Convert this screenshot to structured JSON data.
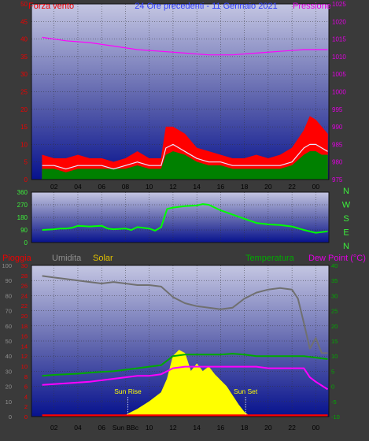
{
  "chart_data": [
    {
      "type": "line",
      "title": "24 Ore precedenti - 11 Gennaio 2021",
      "left_label": "Forza vento",
      "right_label": "Pressione",
      "x_ticks": [
        "02",
        "04",
        "06",
        "08",
        "10",
        "12",
        "14",
        "16",
        "18",
        "20",
        "22",
        "00"
      ],
      "y_left_ticks": [
        "0",
        "5",
        "10",
        "15",
        "20",
        "25",
        "30",
        "35",
        "40",
        "45",
        "50"
      ],
      "y_right_ticks": [
        "975",
        "980",
        "985",
        "990",
        "995",
        "1000",
        "1005",
        "1010",
        "1015",
        "1020",
        "1025"
      ],
      "ylim_left": [
        0,
        50
      ],
      "ylim_right": [
        975,
        1025
      ],
      "series": [
        {
          "key": "gust",
          "color": "#ff0000",
          "x": [
            0,
            1,
            2,
            3,
            4,
            5,
            6,
            7,
            8,
            9,
            10,
            10.4,
            11,
            12,
            13,
            14,
            15,
            16,
            17,
            18,
            19,
            20,
            21,
            22,
            22.5,
            23,
            23.5,
            24
          ],
          "values": [
            7,
            6,
            6,
            7,
            6,
            6,
            5,
            6,
            8,
            6,
            6,
            15,
            15,
            13,
            9,
            8,
            7,
            6,
            6,
            7,
            6,
            7,
            9,
            14,
            18,
            17,
            15,
            13
          ]
        },
        {
          "key": "avg",
          "color": "#008000",
          "x": [
            0,
            1,
            2,
            3,
            4,
            5,
            6,
            7,
            8,
            9,
            10,
            10.4,
            11,
            12,
            13,
            14,
            15,
            16,
            17,
            18,
            19,
            20,
            21,
            22,
            22.5,
            23,
            23.5,
            24
          ],
          "values": [
            3,
            3,
            2,
            3,
            3,
            3,
            3,
            3,
            4,
            3,
            3,
            7,
            8,
            7,
            5,
            4,
            4,
            3,
            3,
            3,
            3,
            3,
            4,
            7,
            8,
            8,
            7,
            7
          ]
        },
        {
          "key": "wind",
          "color": "#e8e8ff",
          "x": [
            0,
            1,
            2,
            3,
            4,
            5,
            6,
            7,
            8,
            9,
            10,
            10.4,
            11,
            12,
            13,
            14,
            15,
            16,
            17,
            18,
            19,
            20,
            21,
            22,
            22.5,
            23,
            23.5,
            24
          ],
          "values": [
            4,
            4,
            3,
            4,
            4,
            4,
            3,
            4,
            5,
            4,
            4,
            9,
            10,
            8,
            6,
            5,
            5,
            4,
            4,
            4,
            4,
            4,
            5,
            9,
            10,
            10,
            9,
            8
          ]
        },
        {
          "key": "pressure",
          "axis": "right",
          "color": "#ff00ff",
          "x": [
            0,
            2,
            4,
            6,
            8,
            10,
            12,
            14,
            16,
            18,
            20,
            22,
            23,
            24
          ],
          "values": [
            1015.5,
            1014.5,
            1014,
            1013,
            1012,
            1011.5,
            1011,
            1010.5,
            1010.5,
            1011,
            1011.5,
            1012,
            1012,
            1012
          ]
        }
      ]
    },
    {
      "type": "line",
      "y_left_ticks": [
        "0",
        "90",
        "180",
        "270",
        "360"
      ],
      "ylim": [
        0,
        360
      ],
      "right_labels": [
        "N",
        "W",
        "S",
        "E",
        "N"
      ],
      "series": [
        {
          "key": "direction",
          "color": "#00ff00",
          "x": [
            0,
            1,
            1.5,
            2,
            2.5,
            3,
            4,
            5,
            5.5,
            6,
            7,
            7.5,
            8,
            9,
            9.5,
            10,
            10.5,
            11,
            12,
            13,
            13.5,
            14,
            15,
            16,
            17,
            18,
            19,
            20,
            21,
            22,
            23,
            24
          ],
          "values": [
            90,
            95,
            100,
            100,
            105,
            120,
            115,
            120,
            100,
            95,
            100,
            90,
            110,
            100,
            85,
            110,
            240,
            250,
            260,
            265,
            275,
            270,
            230,
            200,
            170,
            140,
            130,
            125,
            115,
            90,
            70,
            80
          ]
        }
      ]
    },
    {
      "type": "line",
      "labels": {
        "rain": "Pioggia",
        "humidity": "Umidita",
        "solar": "Solar",
        "temperature": "Temperatura",
        "dew": "Dew Point (°C)"
      },
      "x_ticks": [
        "02",
        "04",
        "06",
        "Sun BBc",
        "10",
        "12",
        "14",
        "16",
        "18",
        "20",
        "22",
        "00"
      ],
      "y_humidity_ticks": [
        "0",
        "10",
        "20",
        "30",
        "40",
        "50",
        "60",
        "70",
        "80",
        "90",
        "100"
      ],
      "y_rain_ticks": [
        "0",
        "2",
        "4",
        "6",
        "8",
        "10",
        "12",
        "14",
        "16",
        "18",
        "20",
        "22",
        "24",
        "26",
        "28",
        "30"
      ],
      "y_temp_ticks": [
        "-10",
        "-5",
        "0",
        "5",
        "10",
        "15",
        "20",
        "25",
        "30",
        "35",
        "40"
      ],
      "ylim_humidity": [
        0,
        100
      ],
      "ylim_temp": [
        -10,
        40
      ],
      "annotations": [
        "Sun Rise",
        "Sun Set"
      ],
      "series": [
        {
          "key": "humidity",
          "color": "#707070",
          "x": [
            0,
            1,
            2,
            3,
            4,
            5,
            6,
            7,
            8,
            9,
            10,
            11,
            12,
            13,
            14,
            15,
            16,
            17,
            18,
            19,
            20,
            21,
            21.5,
            22,
            22.5,
            23,
            23.5,
            24
          ],
          "values": [
            93,
            92,
            91,
            90,
            89,
            88,
            89,
            88,
            87,
            87,
            86,
            79,
            75,
            73,
            72,
            71,
            72,
            78,
            82,
            84,
            85,
            84,
            78,
            62,
            45,
            52,
            42,
            42
          ]
        },
        {
          "key": "temperature",
          "color": "#00aa00",
          "x": [
            0,
            1,
            2,
            3,
            4,
            5,
            6,
            7,
            8,
            9,
            10,
            11,
            12,
            13,
            14,
            15,
            16,
            17,
            18,
            19,
            20,
            21,
            22,
            23,
            24
          ],
          "values": [
            3.5,
            3.8,
            4,
            4.2,
            4.5,
            4.8,
            5,
            5.5,
            6,
            6.5,
            7,
            10,
            10.5,
            10.5,
            10.5,
            10.5,
            10.8,
            10.5,
            10,
            10,
            10,
            10,
            10,
            9.5,
            9
          ]
        },
        {
          "key": "dew",
          "color": "#ff00ff",
          "x": [
            0,
            2,
            4,
            5,
            6,
            7,
            8,
            9,
            10,
            11,
            12,
            13,
            14,
            15,
            16,
            17,
            18,
            19,
            20,
            21,
            22,
            22.5,
            23,
            24
          ],
          "values": [
            0.5,
            1,
            1.5,
            2,
            2.5,
            3,
            3.5,
            3.5,
            4,
            6,
            6.5,
            6.5,
            6.5,
            6.5,
            6.5,
            6.5,
            6.5,
            6,
            6,
            6,
            6,
            3,
            1.5,
            -1
          ]
        },
        {
          "key": "solar",
          "color": "#ffff00",
          "x": [
            6.5,
            7,
            8,
            9,
            10,
            10.5,
            11,
            11.5,
            12,
            12.5,
            13,
            13.5,
            14,
            14.5,
            15,
            15.5,
            16,
            16.5,
            17,
            17.5
          ],
          "values": [
            0,
            1,
            5,
            10,
            16,
            25,
            40,
            44,
            42,
            30,
            35,
            30,
            33,
            28,
            24,
            20,
            14,
            8,
            3,
            0
          ]
        },
        {
          "key": "rain",
          "color": "#ff0000",
          "x": [
            0,
            24
          ],
          "values": [
            0,
            0
          ]
        }
      ]
    }
  ]
}
